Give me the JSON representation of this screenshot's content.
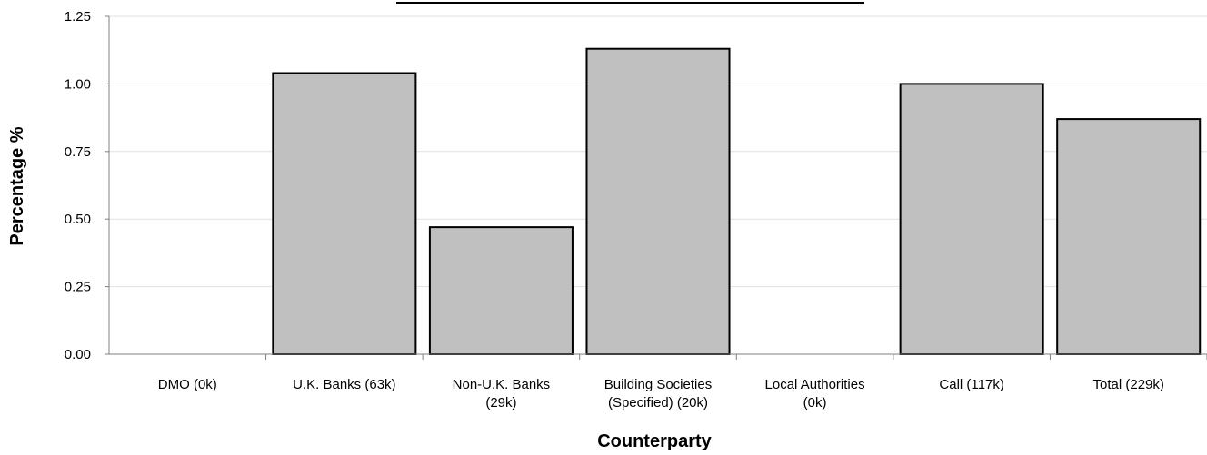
{
  "chart_data": {
    "type": "bar",
    "title": "",
    "xlabel": "Counterparty",
    "ylabel": "Percentage %",
    "ylim": [
      0,
      1.25
    ],
    "yticks": [
      "0.00",
      "0.25",
      "0.50",
      "0.75",
      "1.00",
      "1.25"
    ],
    "grid": true,
    "legend": "none",
    "categories": [
      [
        "DMO (0k)"
      ],
      [
        "U.K. Banks (63k)"
      ],
      [
        "Non-U.K. Banks",
        "(29k)"
      ],
      [
        "Building Societies",
        "(Specified) (20k)"
      ],
      [
        "Local Authorities",
        "(0k)"
      ],
      [
        "Call (117k)"
      ],
      [
        "Total (229k)"
      ]
    ],
    "values": [
      0,
      1.04,
      0.47,
      1.13,
      0,
      1.0,
      0.87
    ],
    "colors": {
      "bar_fill": "#c0c0c0",
      "bar_stroke": "#000000"
    }
  }
}
